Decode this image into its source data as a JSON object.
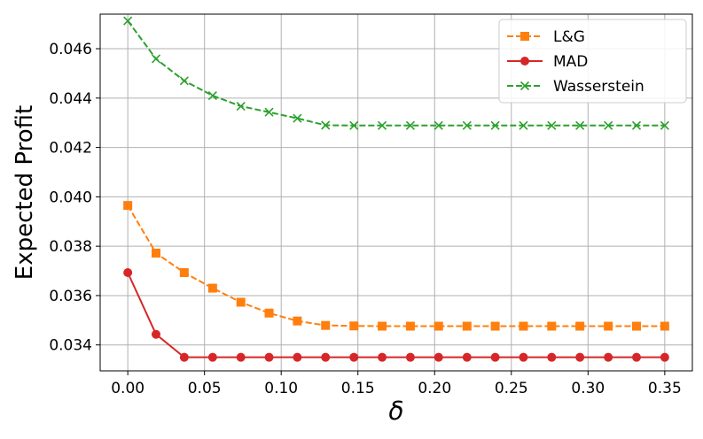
{
  "chart_data": {
    "type": "line",
    "title": "",
    "xlabel": "δ",
    "ylabel": "Expected Profit",
    "xlim": [
      -0.018,
      0.368
    ],
    "ylim": [
      0.03295,
      0.0474
    ],
    "xticks": [
      0.0,
      0.05,
      0.1,
      0.15,
      0.2,
      0.25,
      0.3,
      0.35
    ],
    "xtick_labels": [
      "0.00",
      "0.05",
      "0.10",
      "0.15",
      "0.20",
      "0.25",
      "0.30",
      "0.35"
    ],
    "yticks": [
      0.034,
      0.036,
      0.038,
      0.04,
      0.042,
      0.044,
      0.046
    ],
    "ytick_labels": [
      "0.034",
      "0.036",
      "0.038",
      "0.040",
      "0.042",
      "0.044",
      "0.046"
    ],
    "grid": true,
    "legend_position": "top-right",
    "x": [
      0.0,
      0.0184,
      0.0368,
      0.0553,
      0.0737,
      0.0921,
      0.1105,
      0.1289,
      0.1474,
      0.1658,
      0.1842,
      0.2026,
      0.2211,
      0.2395,
      0.2579,
      0.2763,
      0.2947,
      0.3132,
      0.3316,
      0.35
    ],
    "series": [
      {
        "name": "L&G",
        "color": "#ff7f0e",
        "line_style": "dashed",
        "marker": "square",
        "values": [
          0.03965,
          0.03772,
          0.03693,
          0.0363,
          0.03573,
          0.03529,
          0.03497,
          0.03479,
          0.03477,
          0.03476,
          0.03476,
          0.03476,
          0.03476,
          0.03476,
          0.03476,
          0.03476,
          0.03476,
          0.03476,
          0.03476,
          0.03476
        ]
      },
      {
        "name": "MAD",
        "color": "#d62728",
        "line_style": "solid",
        "marker": "circle",
        "values": [
          0.03693,
          0.03443,
          0.0335,
          0.0335,
          0.0335,
          0.0335,
          0.0335,
          0.0335,
          0.0335,
          0.0335,
          0.0335,
          0.0335,
          0.0335,
          0.0335,
          0.0335,
          0.0335,
          0.0335,
          0.0335,
          0.0335,
          0.0335
        ]
      },
      {
        "name": "Wasserstein",
        "color": "#2ca02c",
        "line_style": "dashed",
        "marker": "x",
        "values": [
          0.04713,
          0.04559,
          0.0447,
          0.0441,
          0.04367,
          0.04343,
          0.04318,
          0.0429,
          0.04289,
          0.04289,
          0.04289,
          0.04289,
          0.04289,
          0.04289,
          0.04289,
          0.04289,
          0.04289,
          0.04289,
          0.04289,
          0.04289
        ]
      }
    ]
  }
}
